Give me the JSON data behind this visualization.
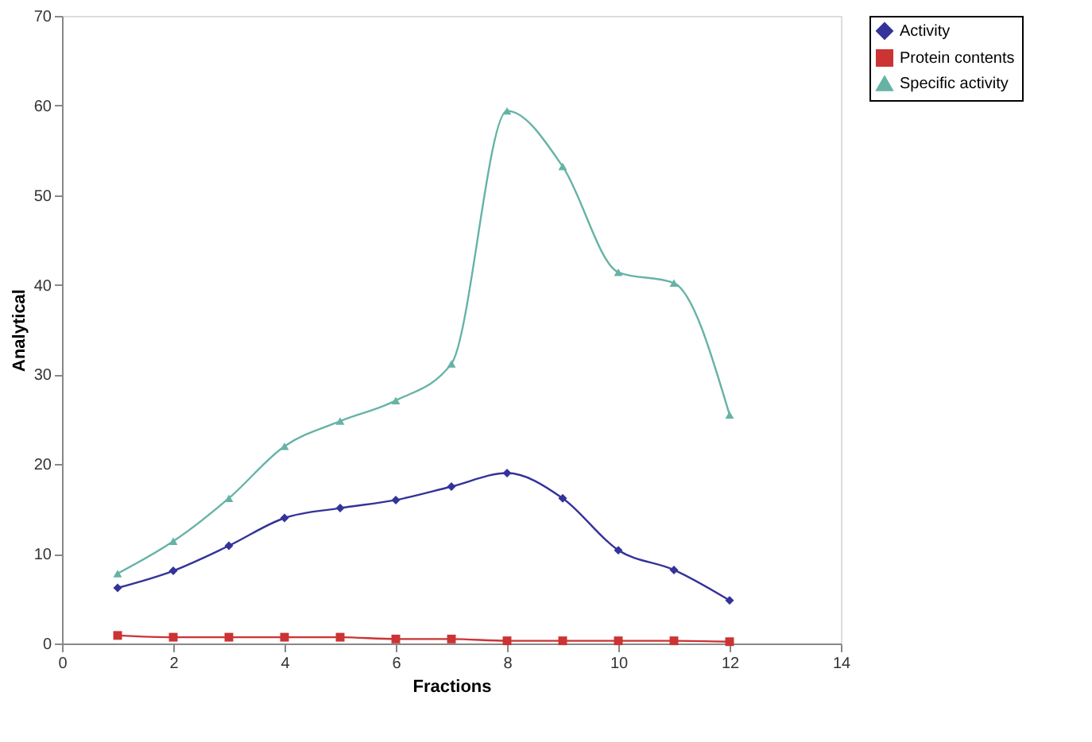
{
  "chart_data": {
    "type": "line",
    "xlabel": "Fractions",
    "ylabel": "Analytical",
    "x": [
      1,
      2,
      3,
      4,
      5,
      6,
      7,
      8,
      9,
      10,
      11,
      12
    ],
    "series": [
      {
        "name": "Activity",
        "color": "#333399",
        "marker": "diamond",
        "values": [
          6.2,
          8.1,
          10.9,
          14,
          15.1,
          16,
          17.5,
          19,
          16.2,
          10.4,
          8.2,
          4.8
        ]
      },
      {
        "name": "Protein contents",
        "color": "#cc3333",
        "marker": "square",
        "values": [
          0.9,
          0.7,
          0.7,
          0.7,
          0.7,
          0.5,
          0.5,
          0.3,
          0.3,
          0.3,
          0.3,
          0.2
        ]
      },
      {
        "name": "Specific activity",
        "color": "#66b3a6",
        "marker": "triangle",
        "values": [
          7.8,
          11.4,
          16.2,
          22,
          24.8,
          27.1,
          31.2,
          59.4,
          53.2,
          41.4,
          40.2,
          25.5
        ]
      }
    ],
    "xlim": [
      0,
      14
    ],
    "xticks": [
      0,
      2,
      4,
      6,
      8,
      10,
      12,
      14
    ],
    "ylim": [
      0,
      70
    ],
    "yticks": [
      0,
      10,
      20,
      30,
      40,
      50,
      60,
      70
    ],
    "grid": false,
    "legend": "right",
    "line_style": "solid"
  }
}
